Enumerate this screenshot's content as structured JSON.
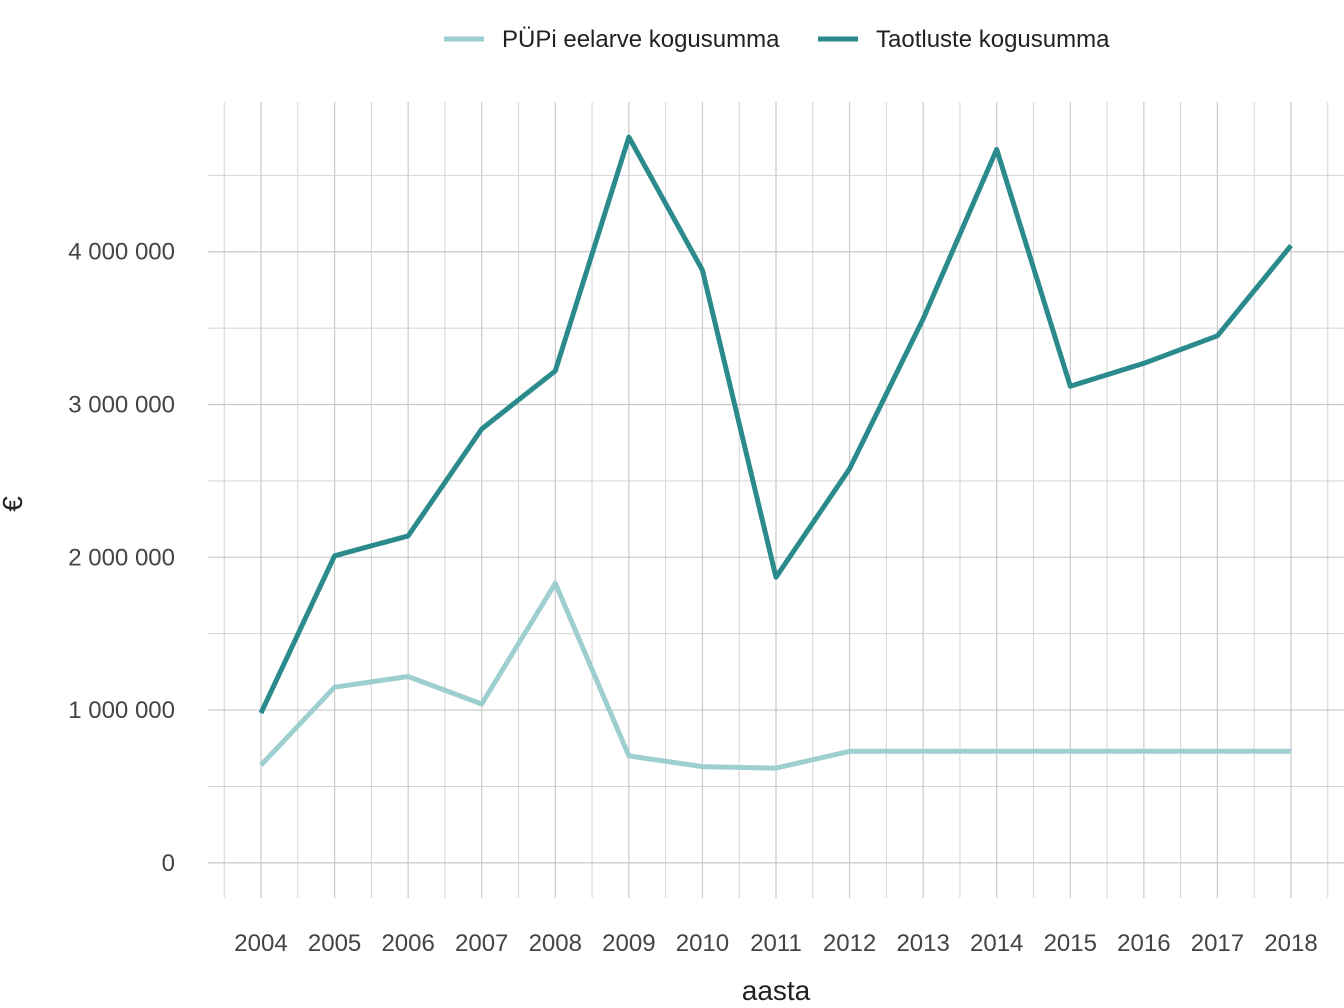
{
  "chart_data": {
    "type": "line",
    "title": "",
    "xlabel": "aasta",
    "ylabel": "€",
    "x": [
      2004,
      2005,
      2006,
      2007,
      2008,
      2009,
      2010,
      2011,
      2012,
      2013,
      2014,
      2015,
      2016,
      2017,
      2018
    ],
    "ylim": [
      -230000,
      4980000
    ],
    "y_ticks": [
      0,
      1000000,
      2000000,
      3000000,
      4000000
    ],
    "y_tick_labels": [
      "0",
      "1 000 000",
      "2 000 000",
      "3 000 000",
      "4 000 000"
    ],
    "x_tick_labels": [
      "2004",
      "2005",
      "2006",
      "2007",
      "2008",
      "2009",
      "2010",
      "2011",
      "2012",
      "2013",
      "2014",
      "2015",
      "2016",
      "2017",
      "2018"
    ],
    "grid": true,
    "legend_position": "top",
    "series": [
      {
        "name": "PÜPi eelarve kogusumma",
        "color": "#9ecfd0",
        "values": [
          640000,
          1150000,
          1220000,
          1040000,
          1830000,
          700000,
          630000,
          620000,
          730000,
          730000,
          730000,
          730000,
          730000,
          730000,
          730000
        ]
      },
      {
        "name": "Taotluste kogusumma",
        "color": "#2b8a8c",
        "values": [
          980000,
          2010000,
          2140000,
          2840000,
          3220000,
          4750000,
          3880000,
          1870000,
          2580000,
          3560000,
          4670000,
          3120000,
          3270000,
          3450000,
          4040000
        ]
      }
    ]
  }
}
